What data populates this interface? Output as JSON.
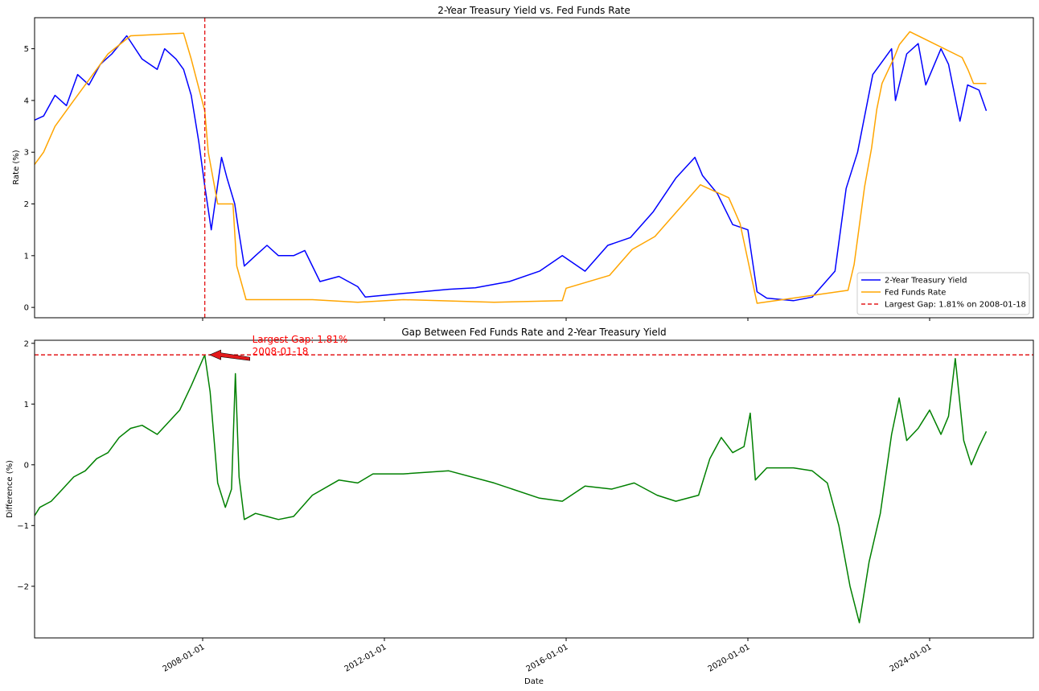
{
  "chart_data": [
    {
      "type": "line",
      "title": "2-Year Treasury Yield vs. Fed Funds Rate",
      "xlabel": "",
      "ylabel": "Rate (%)",
      "ylim": [
        -0.2,
        5.6
      ],
      "yticks": [
        0,
        1,
        2,
        3,
        4,
        5
      ],
      "legend_position": "lower-right",
      "legend": [
        "2-Year Treasury Yield",
        "Fed Funds Rate",
        "Largest Gap: 1.81% on 2008-01-18"
      ],
      "vline": {
        "x": "2008-01-18",
        "color": "#e41a1c"
      },
      "series": [
        {
          "name": "2-Year Treasury Yield",
          "color": "#0000ff",
          "points": [
            [
              "2004-04-01",
              3.6
            ],
            [
              "2004-07-01",
              3.7
            ],
            [
              "2004-10-01",
              4.1
            ],
            [
              "2005-01-01",
              3.9
            ],
            [
              "2005-04-01",
              4.5
            ],
            [
              "2005-07-01",
              4.3
            ],
            [
              "2005-10-01",
              4.7
            ],
            [
              "2006-01-01",
              4.9
            ],
            [
              "2006-05-01",
              5.25
            ],
            [
              "2006-09-01",
              4.8
            ],
            [
              "2007-01-01",
              4.6
            ],
            [
              "2007-03-01",
              5.0
            ],
            [
              "2007-06-01",
              4.8
            ],
            [
              "2007-08-01",
              4.6
            ],
            [
              "2007-10-01",
              4.1
            ],
            [
              "2007-12-01",
              3.2
            ],
            [
              "2008-01-18",
              2.35
            ],
            [
              "2008-03-10",
              1.5
            ],
            [
              "2008-06-01",
              2.9
            ],
            [
              "2008-07-15",
              2.5
            ],
            [
              "2008-09-15",
              2.0
            ],
            [
              "2008-10-15",
              1.5
            ],
            [
              "2008-12-01",
              0.8
            ],
            [
              "2009-03-01",
              1.0
            ],
            [
              "2009-06-01",
              1.2
            ],
            [
              "2009-09-01",
              1.0
            ],
            [
              "2010-01-01",
              1.0
            ],
            [
              "2010-04-01",
              1.1
            ],
            [
              "2010-08-01",
              0.5
            ],
            [
              "2011-01-01",
              0.6
            ],
            [
              "2011-06-01",
              0.4
            ],
            [
              "2011-08-01",
              0.2
            ],
            [
              "2012-06-01",
              0.27
            ],
            [
              "2013-06-01",
              0.35
            ],
            [
              "2014-01-01",
              0.38
            ],
            [
              "2014-10-01",
              0.5
            ],
            [
              "2015-06-01",
              0.7
            ],
            [
              "2015-12-01",
              1.0
            ],
            [
              "2016-06-01",
              0.7
            ],
            [
              "2016-12-01",
              1.2
            ],
            [
              "2017-06-01",
              1.35
            ],
            [
              "2017-12-01",
              1.85
            ],
            [
              "2018-06-01",
              2.5
            ],
            [
              "2018-11-01",
              2.9
            ],
            [
              "2019-01-01",
              2.55
            ],
            [
              "2019-05-01",
              2.2
            ],
            [
              "2019-09-01",
              1.6
            ],
            [
              "2020-01-01",
              1.5
            ],
            [
              "2020-03-15",
              0.3
            ],
            [
              "2020-06-01",
              0.18
            ],
            [
              "2021-01-01",
              0.13
            ],
            [
              "2021-06-01",
              0.2
            ],
            [
              "2021-12-01",
              0.7
            ],
            [
              "2022-03-01",
              2.3
            ],
            [
              "2022-06-01",
              3.0
            ],
            [
              "2022-10-01",
              4.5
            ],
            [
              "2023-03-01",
              5.0
            ],
            [
              "2023-04-01",
              4.0
            ],
            [
              "2023-07-01",
              4.9
            ],
            [
              "2023-10-01",
              5.1
            ],
            [
              "2023-12-01",
              4.3
            ],
            [
              "2024-04-01",
              5.0
            ],
            [
              "2024-06-01",
              4.7
            ],
            [
              "2024-09-01",
              3.6
            ],
            [
              "2024-11-01",
              4.3
            ],
            [
              "2025-02-01",
              4.2
            ],
            [
              "2025-04-01",
              3.8
            ]
          ]
        },
        {
          "name": "Fed Funds Rate",
          "color": "#ffa500",
          "points": [
            [
              "2004-04-01",
              2.7
            ],
            [
              "2004-07-01",
              3.0
            ],
            [
              "2004-10-01",
              3.5
            ],
            [
              "2005-03-01",
              4.0
            ],
            [
              "2005-08-01",
              4.5
            ],
            [
              "2005-12-01",
              4.9
            ],
            [
              "2006-06-01",
              5.25
            ],
            [
              "2007-08-01",
              5.3
            ],
            [
              "2007-10-01",
              4.8
            ],
            [
              "2008-01-18",
              3.8
            ],
            [
              "2008-02-15",
              3.0
            ],
            [
              "2008-05-01",
              2.0
            ],
            [
              "2008-09-01",
              2.0
            ],
            [
              "2008-10-01",
              0.8
            ],
            [
              "2008-12-15",
              0.15
            ],
            [
              "2010-06-01",
              0.15
            ],
            [
              "2011-06-01",
              0.1
            ],
            [
              "2012-06-01",
              0.15
            ],
            [
              "2014-06-01",
              0.1
            ],
            [
              "2015-12-01",
              0.13
            ],
            [
              "2016-01-01",
              0.37
            ],
            [
              "2016-12-15",
              0.62
            ],
            [
              "2017-03-15",
              0.87
            ],
            [
              "2017-06-15",
              1.12
            ],
            [
              "2017-12-15",
              1.37
            ],
            [
              "2018-03-15",
              1.62
            ],
            [
              "2018-06-15",
              1.87
            ],
            [
              "2018-09-15",
              2.12
            ],
            [
              "2018-12-15",
              2.37
            ],
            [
              "2019-07-31",
              2.12
            ],
            [
              "2019-09-15",
              1.87
            ],
            [
              "2019-10-30",
              1.62
            ],
            [
              "2020-03-15",
              0.08
            ],
            [
              "2022-03-16",
              0.33
            ],
            [
              "2022-05-04",
              0.83
            ],
            [
              "2022-06-15",
              1.58
            ],
            [
              "2022-07-27",
              2.33
            ],
            [
              "2022-09-21",
              3.08
            ],
            [
              "2022-11-02",
              3.83
            ],
            [
              "2022-12-14",
              4.33
            ],
            [
              "2023-02-01",
              4.58
            ],
            [
              "2023-03-22",
              4.83
            ],
            [
              "2023-05-03",
              5.08
            ],
            [
              "2023-07-26",
              5.33
            ],
            [
              "2024-09-18",
              4.83
            ],
            [
              "2024-11-07",
              4.58
            ],
            [
              "2024-12-18",
              4.33
            ],
            [
              "2025-04-01",
              4.33
            ]
          ]
        }
      ]
    },
    {
      "type": "line",
      "title": "Gap Between Fed Funds Rate and 2-Year Treasury Yield",
      "xlabel": "Date",
      "ylabel": "Difference (%)",
      "ylim": [
        -2.85,
        2.05
      ],
      "yticks": [
        -2,
        -1,
        0,
        1,
        2
      ],
      "xtick_labels": [
        "2008-01-01",
        "2012-01-01",
        "2016-01-01",
        "2020-01-01",
        "2024-01-01"
      ],
      "hline": {
        "y": 1.81,
        "color": "#e41a1c"
      },
      "annotation": {
        "text_line1": "Largest Gap: 1.81%",
        "text_line2": "2008-01-18",
        "x": "2008-01-18",
        "y": 1.81
      },
      "series": [
        {
          "name": "",
          "color": "#008000",
          "points": [
            [
              "2004-04-01",
              -0.9
            ],
            [
              "2004-06-01",
              -0.7
            ],
            [
              "2004-09-01",
              -0.6
            ],
            [
              "2004-12-01",
              -0.4
            ],
            [
              "2005-03-01",
              -0.2
            ],
            [
              "2005-06-01",
              -0.1
            ],
            [
              "2005-09-01",
              0.1
            ],
            [
              "2005-12-01",
              0.2
            ],
            [
              "2006-03-01",
              0.45
            ],
            [
              "2006-06-01",
              0.6
            ],
            [
              "2006-09-01",
              0.65
            ],
            [
              "2007-01-01",
              0.5
            ],
            [
              "2007-04-01",
              0.7
            ],
            [
              "2007-07-01",
              0.9
            ],
            [
              "2007-10-01",
              1.3
            ],
            [
              "2008-01-18",
              1.81
            ],
            [
              "2008-03-01",
              1.2
            ],
            [
              "2008-05-01",
              -0.3
            ],
            [
              "2008-07-01",
              -0.7
            ],
            [
              "2008-08-20",
              -0.4
            ],
            [
              "2008-09-20",
              1.5
            ],
            [
              "2008-10-20",
              -0.2
            ],
            [
              "2008-12-01",
              -0.9
            ],
            [
              "2009-03-01",
              -0.8
            ],
            [
              "2009-06-01",
              -0.85
            ],
            [
              "2009-09-01",
              -0.9
            ],
            [
              "2010-01-01",
              -0.85
            ],
            [
              "2010-06-01",
              -0.5
            ],
            [
              "2011-01-01",
              -0.25
            ],
            [
              "2011-06-01",
              -0.3
            ],
            [
              "2011-10-01",
              -0.15
            ],
            [
              "2012-06-01",
              -0.15
            ],
            [
              "2013-06-01",
              -0.1
            ],
            [
              "2014-06-01",
              -0.3
            ],
            [
              "2015-06-01",
              -0.55
            ],
            [
              "2015-12-01",
              -0.6
            ],
            [
              "2016-06-01",
              -0.35
            ],
            [
              "2017-01-01",
              -0.4
            ],
            [
              "2017-07-01",
              -0.3
            ],
            [
              "2018-01-01",
              -0.5
            ],
            [
              "2018-06-01",
              -0.6
            ],
            [
              "2018-12-01",
              -0.5
            ],
            [
              "2019-03-01",
              0.1
            ],
            [
              "2019-06-01",
              0.45
            ],
            [
              "2019-09-01",
              0.2
            ],
            [
              "2019-12-01",
              0.3
            ],
            [
              "2020-01-20",
              0.85
            ],
            [
              "2020-03-01",
              -0.25
            ],
            [
              "2020-06-01",
              -0.05
            ],
            [
              "2021-01-01",
              -0.05
            ],
            [
              "2021-06-01",
              -0.1
            ],
            [
              "2021-10-01",
              -0.3
            ],
            [
              "2022-01-01",
              -1.0
            ],
            [
              "2022-04-01",
              -2.0
            ],
            [
              "2022-06-15",
              -2.6
            ],
            [
              "2022-09-01",
              -1.6
            ],
            [
              "2022-12-01",
              -0.8
            ],
            [
              "2023-03-01",
              0.5
            ],
            [
              "2023-05-01",
              1.1
            ],
            [
              "2023-07-01",
              0.4
            ],
            [
              "2023-10-01",
              0.6
            ],
            [
              "2024-01-01",
              0.9
            ],
            [
              "2024-04-01",
              0.5
            ],
            [
              "2024-06-01",
              0.8
            ],
            [
              "2024-07-25",
              1.75
            ],
            [
              "2024-10-01",
              0.4
            ],
            [
              "2024-12-01",
              0.0
            ],
            [
              "2025-02-01",
              0.3
            ],
            [
              "2025-04-01",
              0.55
            ]
          ]
        }
      ]
    }
  ]
}
